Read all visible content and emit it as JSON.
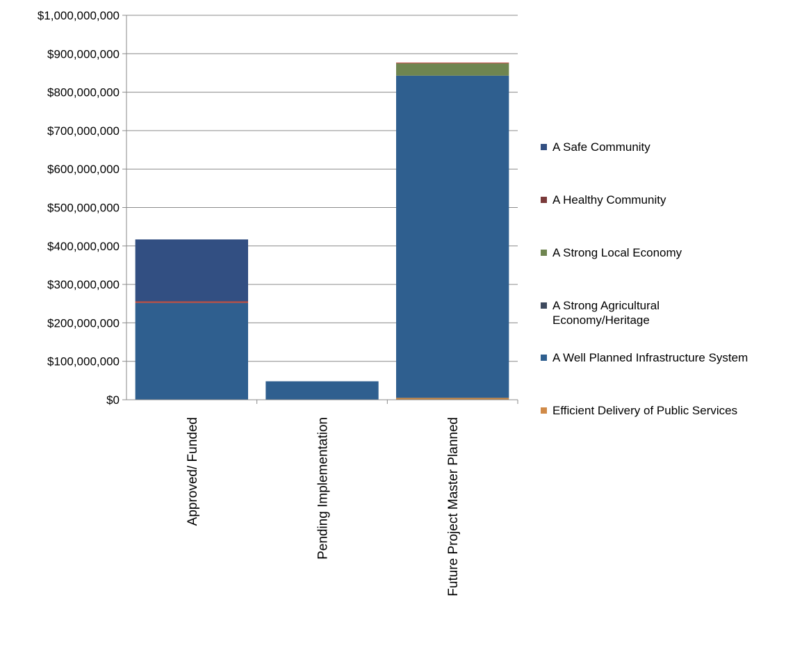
{
  "chart_data": {
    "type": "bar",
    "stacked": true,
    "categories": [
      "Approved/ Funded",
      "Pending Implementation",
      "Future Project Master Planned"
    ],
    "ylim": [
      0,
      1000000000
    ],
    "yticks": [
      0,
      100000000,
      200000000,
      300000000,
      400000000,
      500000000,
      600000000,
      700000000,
      800000000,
      900000000,
      1000000000
    ],
    "ytick_labels": [
      "$0",
      "$100,000,000",
      "$200,000,000",
      "$300,000,000",
      "$400,000,000",
      "$500,000,000",
      "$600,000,000",
      "$700,000,000",
      "$800,000,000",
      "$900,000,000",
      "$1,000,000,000"
    ],
    "grid": true,
    "legend_position": "right",
    "series": [
      {
        "name": "Efficient Delivery of Public Services",
        "color": "#c0803c",
        "values": [
          0,
          0,
          5000000
        ]
      },
      {
        "name": "A Well Planned Infrastructure System",
        "color": "#2f5f8f",
        "values": [
          252000000,
          48000000,
          838000000
        ]
      },
      {
        "name": "A Strong Agricultural Economy/Heritage",
        "color": "#3e4a5e",
        "values": [
          0,
          0,
          0
        ]
      },
      {
        "name": "A Strong Local Economy",
        "color": "#6f8550",
        "values": [
          0,
          0,
          32000000
        ]
      },
      {
        "name": "A Healthy Community",
        "color": "#b5453a",
        "values": [
          4000000,
          0,
          2000000
        ]
      },
      {
        "name": "A Safe Community",
        "color": "#324f82",
        "values": [
          161000000,
          0,
          0
        ]
      }
    ],
    "legend_order": [
      {
        "lines": [
          "A Safe Community"
        ],
        "color": "#324f82"
      },
      {
        "lines": [
          "A Healthy Community"
        ],
        "color": "#7a3a3a"
      },
      {
        "lines": [
          "A Strong Local Economy"
        ],
        "color": "#6f8550"
      },
      {
        "lines": [
          "A Strong Agricultural",
          "Economy/Heritage"
        ],
        "color": "#3e4a5e"
      },
      {
        "lines": [
          "A Well Planned Infrastructure System"
        ],
        "color": "#2f5f8f"
      },
      {
        "lines": [
          "Efficient Delivery of Public Services"
        ],
        "color": "#d08a48"
      }
    ]
  }
}
